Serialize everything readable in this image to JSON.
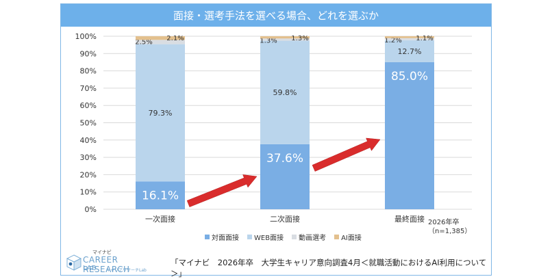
{
  "title": "面接・選考手法を選べる場合、どれを選ぶか",
  "chart_data": {
    "type": "bar",
    "stacked": true,
    "categories": [
      "一次面接",
      "二次面接",
      "最終面接"
    ],
    "series": [
      {
        "name": "対面面接",
        "color": "#7aaee4",
        "values": [
          16.1,
          37.6,
          85.0
        ],
        "labels": [
          "16.1%",
          "37.6%",
          "85.0%"
        ]
      },
      {
        "name": "WEB面接",
        "color": "#bad5ec",
        "values": [
          79.3,
          59.8,
          12.7
        ],
        "labels": [
          "79.3%",
          "59.8%",
          "12.7%"
        ]
      },
      {
        "name": "動画選考",
        "color": "#d9dde2",
        "values": [
          2.5,
          1.3,
          1.2
        ],
        "labels": [
          "2.5%",
          "1.3%",
          "1.2%"
        ]
      },
      {
        "name": "AI面接",
        "color": "#e3c08e",
        "values": [
          2.1,
          1.3,
          1.1
        ],
        "labels": [
          "2.1%",
          "1.3%",
          "1.1%"
        ]
      }
    ],
    "ylim": [
      0,
      100
    ],
    "yticks": [
      "0%",
      "10%",
      "20%",
      "30%",
      "40%",
      "50%",
      "60%",
      "70%",
      "80%",
      "90%",
      "100%"
    ],
    "grid": true,
    "legend": "bottom"
  },
  "sample_note": {
    "line1": "2026年卒",
    "line2": "（n=1,385）"
  },
  "logo": {
    "small": "マイナビ",
    "main": "CAREER RESEARCH",
    "sub": "LAB",
    "sub2": "キャリアリサーチLab"
  },
  "source": "「マイナビ　2026年卒　大学生キャリア意向調査4月＜就職活動におけるAI利用について＞」"
}
